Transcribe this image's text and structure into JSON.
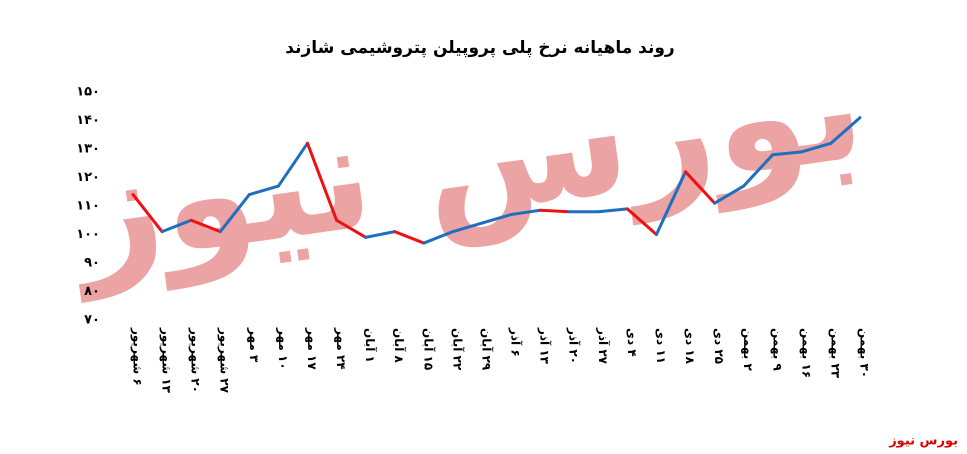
{
  "chart_data": {
    "type": "line",
    "title": "روند ماهیانه نرخ پلی پروپیلن پتروشیمی شازند",
    "watermark": "بورس نیوز",
    "source": "بورس نیوز",
    "categories": [
      "۶ شهریور",
      "۱۳ شهریور",
      "۲۰ شهریور",
      "۲۷ شهریور",
      "۳ مهر",
      "۱۰ مهر",
      "۱۷ مهر",
      "۲۴ مهر",
      "۱ آبان",
      "۸ آبان",
      "۱۵ آبان",
      "۲۲ آبان",
      "۲۹ آبان",
      "۶ آذر",
      "۱۳ آذر",
      "۲۰ آذر",
      "۲۷ آذر",
      "۴ دی",
      "۱۱ دی",
      "۱۸ دی",
      "۲۵ دی",
      "۲ بهمن",
      "۹ بهمن",
      "۱۶ بهمن",
      "۲۳ بهمن",
      "۳۰ بهمن"
    ],
    "values": [
      114,
      101,
      105,
      101,
      114,
      117,
      132,
      105,
      99,
      101,
      97,
      101,
      104,
      107,
      108.5,
      108,
      108,
      109,
      100,
      122,
      111,
      117,
      128,
      129,
      132,
      141
    ],
    "up_color": "#1f6fc0",
    "down_color": "#ee1111",
    "ylim": [
      70,
      150
    ],
    "yticks": [
      {
        "value": 70,
        "label": "۷۰"
      },
      {
        "value": 80,
        "label": "۸۰"
      },
      {
        "value": 90,
        "label": "۹۰"
      },
      {
        "value": 100,
        "label": "۱۰۰"
      },
      {
        "value": 110,
        "label": "۱۱۰"
      },
      {
        "value": 120,
        "label": "۱۲۰"
      },
      {
        "value": 130,
        "label": "۱۳۰"
      },
      {
        "value": 140,
        "label": "۱۴۰"
      },
      {
        "value": 150,
        "label": "۱۵۰"
      }
    ],
    "grid": false
  }
}
